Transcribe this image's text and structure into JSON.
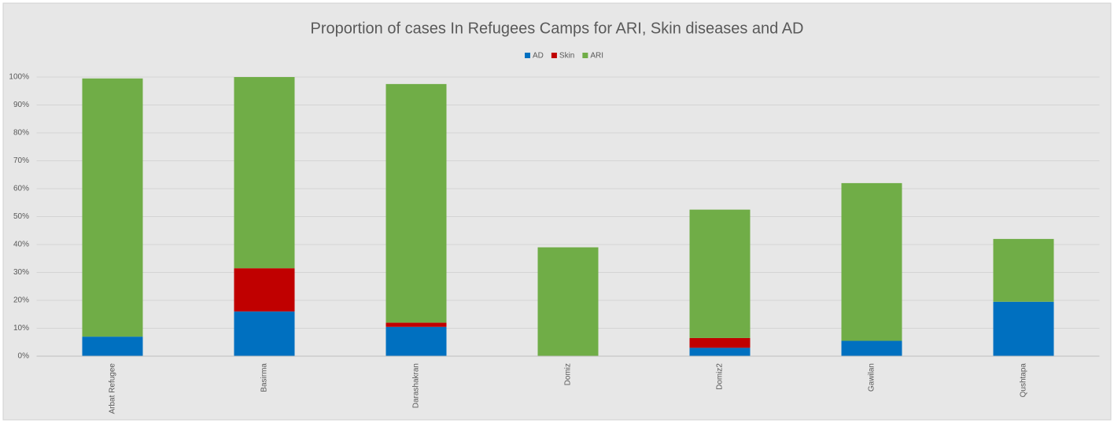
{
  "chart_data": {
    "type": "stacked_bar",
    "title": "Proportion of cases In Refugees Camps for ARI, Skin diseases and AD",
    "categories": [
      "Arbat Refugee",
      "Basirma",
      "Darashakran",
      "Domiz",
      "Domiz2",
      "Gawilan",
      "Qushtapa"
    ],
    "series": [
      {
        "name": "AD",
        "color": "#0070c0",
        "values": [
          7,
          16,
          10.5,
          0,
          3,
          5.5,
          19.5
        ]
      },
      {
        "name": "Skin",
        "color": "#c00000",
        "values": [
          0,
          15.5,
          1.5,
          0,
          3.5,
          0,
          0
        ]
      },
      {
        "name": "ARI",
        "color": "#70ad47",
        "values": [
          92.5,
          68.5,
          85.5,
          39,
          46,
          56.5,
          22.5
        ]
      }
    ],
    "ylim": [
      0,
      100
    ],
    "yticks": [
      {
        "value": 0,
        "label": "0%"
      },
      {
        "value": 10,
        "label": "10%"
      },
      {
        "value": 20,
        "label": "20%"
      },
      {
        "value": 30,
        "label": "30%"
      },
      {
        "value": 40,
        "label": "40%"
      },
      {
        "value": 50,
        "label": "50%"
      },
      {
        "value": 60,
        "label": "60%"
      },
      {
        "value": 70,
        "label": "70%"
      },
      {
        "value": 80,
        "label": "80%"
      },
      {
        "value": 90,
        "label": "90%"
      },
      {
        "value": 100,
        "label": "100%"
      }
    ],
    "grid": true,
    "legend": "top"
  }
}
